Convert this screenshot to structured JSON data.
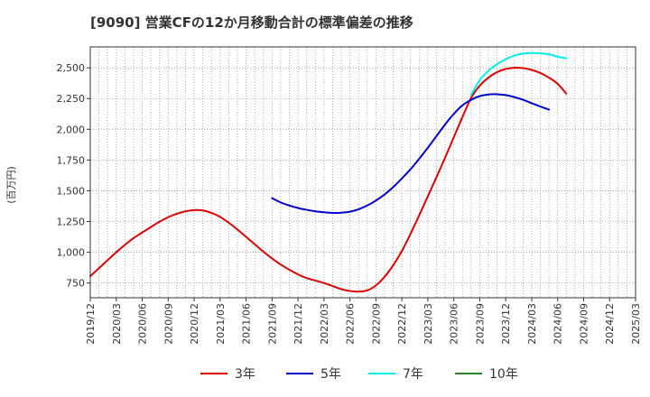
{
  "chart_data": {
    "type": "line",
    "title": "[9090]  営業CFの12か月移動合計の標準偏差の推移",
    "ylabel": "(百万円)",
    "xlabel": "",
    "x_ticks": [
      "2019/12",
      "2020/03",
      "2020/06",
      "2020/09",
      "2020/12",
      "2021/03",
      "2021/06",
      "2021/09",
      "2021/12",
      "2022/03",
      "2022/06",
      "2022/09",
      "2022/12",
      "2023/03",
      "2023/06",
      "2023/09",
      "2023/12",
      "2024/03",
      "2024/06",
      "2024/09",
      "2024/12",
      "2025/03"
    ],
    "y_ticks": [
      "750",
      "1,000",
      "1,250",
      "1,500",
      "1,750",
      "2,000",
      "2,250",
      "2,500"
    ],
    "y_tick_values": [
      750,
      1000,
      1250,
      1500,
      1750,
      2000,
      2250,
      2500
    ],
    "ylim": [
      630,
      2670
    ],
    "x_range": [
      "2019/12",
      "2025/03"
    ],
    "grid": true,
    "legend_position": "bottom",
    "series": [
      {
        "name": "3年",
        "color": "#dd0000",
        "x": [
          "2019/12",
          "2020/01",
          "2020/02",
          "2020/03",
          "2020/04",
          "2020/05",
          "2020/06",
          "2020/07",
          "2020/08",
          "2020/09",
          "2020/10",
          "2020/11",
          "2020/12",
          "2021/01",
          "2021/02",
          "2021/03",
          "2021/04",
          "2021/05",
          "2021/06",
          "2021/07",
          "2021/08",
          "2021/09",
          "2021/10",
          "2021/11",
          "2021/12",
          "2022/01",
          "2022/02",
          "2022/03",
          "2022/04",
          "2022/05",
          "2022/06",
          "2022/07",
          "2022/08",
          "2022/09",
          "2022/10",
          "2022/11",
          "2022/12",
          "2023/01",
          "2023/02",
          "2023/03",
          "2023/04",
          "2023/05",
          "2023/06",
          "2023/07",
          "2023/08",
          "2023/09",
          "2023/10",
          "2023/11",
          "2023/12",
          "2024/01",
          "2024/02",
          "2024/03",
          "2024/04",
          "2024/05",
          "2024/06",
          "2024/07",
          "2024/08",
          "2024/09"
        ],
        "values": [
          805,
          870,
          935,
          1000,
          1060,
          1115,
          1160,
          1205,
          1248,
          1285,
          1313,
          1333,
          1343,
          1340,
          1320,
          1288,
          1240,
          1185,
          1125,
          1065,
          1005,
          950,
          900,
          858,
          820,
          790,
          770,
          750,
          725,
          700,
          685,
          680,
          690,
          730,
          800,
          895,
          1010,
          1150,
          1300,
          1455,
          1610,
          1770,
          1935,
          2100,
          2255,
          2355,
          2420,
          2465,
          2490,
          2500,
          2498,
          2483,
          2458,
          2420,
          2370,
          2290,
          null,
          null
        ],
        "values_note": ""
      },
      {
        "name": "5年",
        "color": "#0000cc",
        "x": [
          "2021/09",
          "2021/10",
          "2021/11",
          "2021/12",
          "2022/01",
          "2022/02",
          "2022/03",
          "2022/04",
          "2022/05",
          "2022/06",
          "2022/07",
          "2022/08",
          "2022/09",
          "2022/10",
          "2022/11",
          "2022/12",
          "2023/01",
          "2023/02",
          "2023/03",
          "2023/04",
          "2023/05",
          "2023/06",
          "2023/07",
          "2023/08",
          "2023/09",
          "2023/10",
          "2023/11",
          "2023/12",
          "2024/01",
          "2024/02",
          "2024/03",
          "2024/04",
          "2024/05",
          "2024/06",
          "2024/07",
          "2024/08",
          "2024/09"
        ],
        "values": [
          1440,
          1405,
          1380,
          1360,
          1345,
          1333,
          1325,
          1320,
          1322,
          1330,
          1350,
          1380,
          1420,
          1470,
          1530,
          1600,
          1675,
          1760,
          1850,
          1945,
          2040,
          2125,
          2195,
          2240,
          2270,
          2283,
          2285,
          2278,
          2262,
          2240,
          2212,
          2185,
          2160,
          null,
          null,
          null,
          null
        ]
      },
      {
        "name": "7年",
        "color": "#00eeee",
        "x": [
          "2023/08",
          "2023/09",
          "2023/10",
          "2023/11",
          "2023/12",
          "2024/01",
          "2024/02",
          "2024/03",
          "2024/04",
          "2024/05",
          "2024/06",
          "2024/07",
          "2024/08",
          "2024/09"
        ],
        "values": [
          2280,
          2400,
          2475,
          2530,
          2570,
          2600,
          2615,
          2620,
          2618,
          2610,
          2590,
          2578,
          null,
          null
        ]
      },
      {
        "name": "10年",
        "color": "#228822",
        "x": [],
        "values": []
      }
    ]
  }
}
